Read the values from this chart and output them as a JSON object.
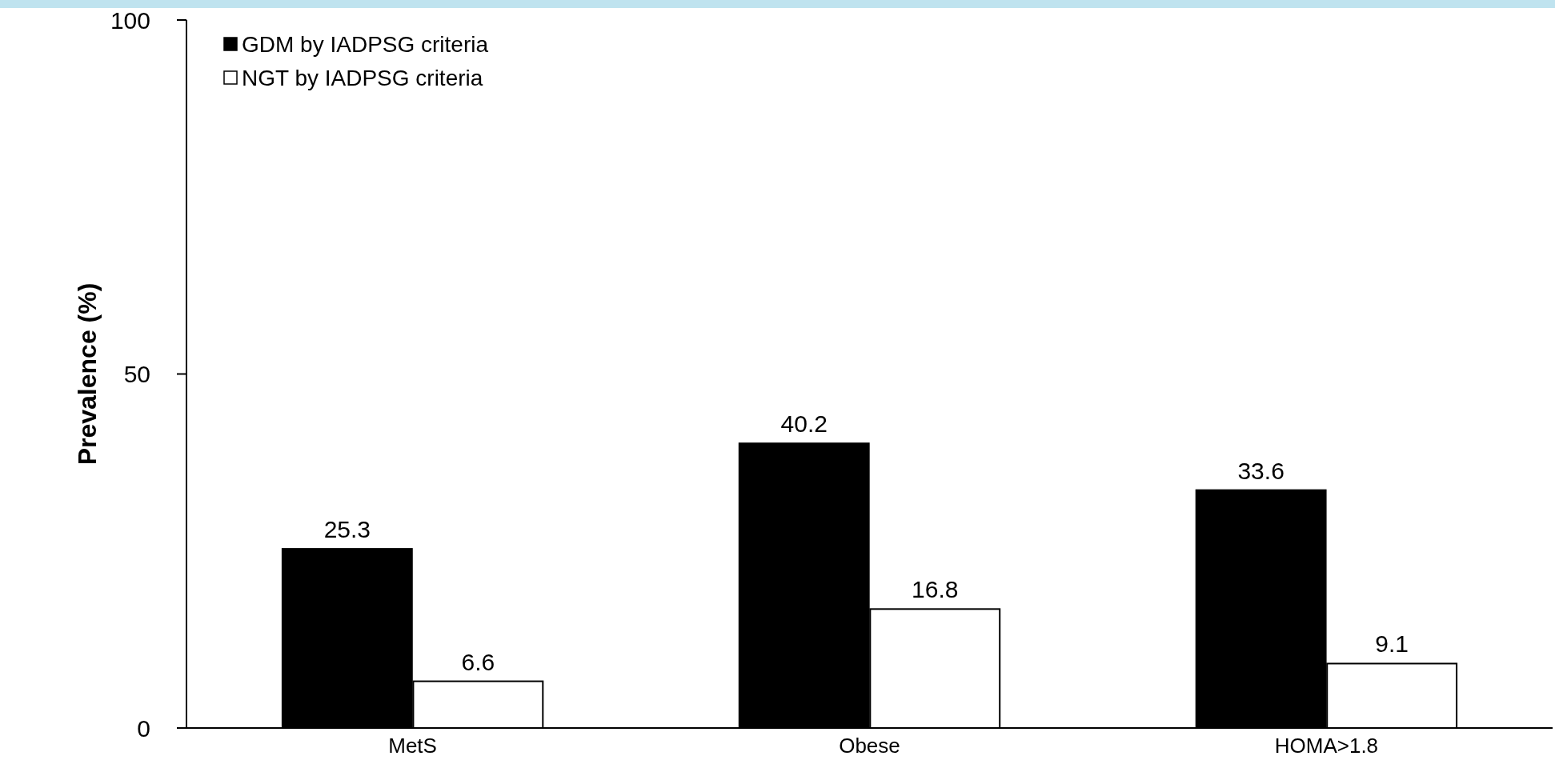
{
  "chart_data": {
    "type": "bar",
    "ylabel": "Prevalence (%)",
    "categories": [
      "MetS",
      "Obese",
      "HOMA>1.8"
    ],
    "series": [
      {
        "name": "GDM by IADPSG criteria",
        "color": "#000000",
        "values": [
          25.3,
          40.2,
          33.6
        ]
      },
      {
        "name": "NGT by IADPSG criteria",
        "color": "#ffffff",
        "values": [
          6.6,
          16.8,
          9.1
        ]
      }
    ],
    "ylim": [
      0,
      100
    ],
    "yticks": [
      0,
      50,
      100
    ],
    "data_labels": true,
    "legend": "top left",
    "grid": false
  }
}
